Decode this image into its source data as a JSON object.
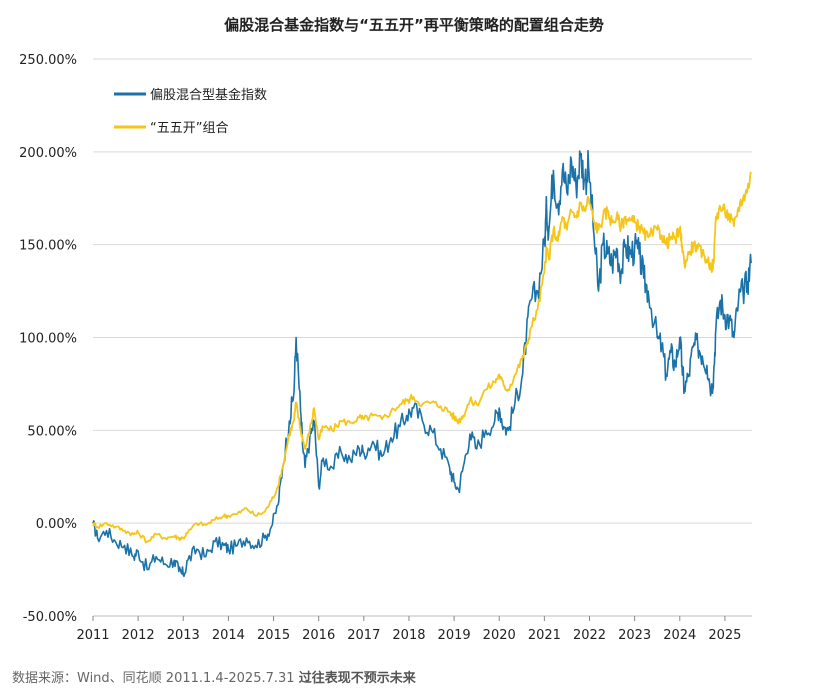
{
  "chart_data": {
    "type": "line",
    "title": "偏股混合基金指数与“五五开”再平衡策略的配置组合走势",
    "xlabel": "",
    "ylabel": "",
    "xlim": [
      2011.0,
      2025.6
    ],
    "ylim": [
      -50,
      250
    ],
    "yticks": [
      -50,
      0,
      50,
      100,
      150,
      200,
      250
    ],
    "ytick_labels": [
      "-50.00%",
      "0.00%",
      "50.00%",
      "100.00%",
      "150.00%",
      "200.00%",
      "250.00%"
    ],
    "xticks": [
      2011,
      2012,
      2013,
      2014,
      2015,
      2016,
      2017,
      2018,
      2019,
      2020,
      2021,
      2022,
      2023,
      2024,
      2025
    ],
    "xtick_labels": [
      "2011",
      "2012",
      "2013",
      "2014",
      "2015",
      "2016",
      "2017",
      "2018",
      "2019",
      "2020",
      "2021",
      "2022",
      "2023",
      "2024",
      "2025"
    ],
    "grid": true,
    "legend_position": "top-left",
    "series": [
      {
        "name": "偏股混合型基金指数",
        "color": "#1a72a8",
        "x": [
          2011.0,
          2011.1,
          2011.3,
          2011.5,
          2011.7,
          2011.9,
          2012.0,
          2012.2,
          2012.4,
          2012.6,
          2012.8,
          2012.9,
          2013.0,
          2013.1,
          2013.3,
          2013.5,
          2013.7,
          2013.9,
          2014.0,
          2014.2,
          2014.4,
          2014.6,
          2014.8,
          2014.95,
          2015.1,
          2015.2,
          2015.35,
          2015.45,
          2015.5,
          2015.6,
          2015.65,
          2015.7,
          2015.8,
          2015.9,
          2016.0,
          2016.1,
          2016.3,
          2016.5,
          2016.7,
          2016.9,
          2017.0,
          2017.2,
          2017.4,
          2017.6,
          2017.8,
          2017.95,
          2018.1,
          2018.3,
          2018.5,
          2018.7,
          2018.9,
          2019.0,
          2019.1,
          2019.2,
          2019.35,
          2019.5,
          2019.7,
          2019.9,
          2020.0,
          2020.1,
          2020.2,
          2020.35,
          2020.5,
          2020.6,
          2020.7,
          2020.85,
          2021.0,
          2021.05,
          2021.1,
          2021.2,
          2021.3,
          2021.4,
          2021.5,
          2021.6,
          2021.7,
          2021.8,
          2021.9,
          2021.98,
          2022.1,
          2022.2,
          2022.3,
          2022.4,
          2022.5,
          2022.6,
          2022.7,
          2022.8,
          2022.9,
          2023.0,
          2023.1,
          2023.2,
          2023.3,
          2023.5,
          2023.6,
          2023.7,
          2023.8,
          2023.9,
          2024.0,
          2024.05,
          2024.1,
          2024.2,
          2024.3,
          2024.4,
          2024.5,
          2024.6,
          2024.7,
          2024.75,
          2024.8,
          2024.9,
          2025.0,
          2025.1,
          2025.2,
          2025.3,
          2025.4,
          2025.5,
          2025.58
        ],
        "y": [
          0,
          -8,
          -4,
          -10,
          -12,
          -18,
          -15,
          -25,
          -18,
          -22,
          -20,
          -26,
          -28,
          -20,
          -14,
          -18,
          -10,
          -12,
          -14,
          -12,
          -8,
          -12,
          -8,
          -2,
          10,
          30,
          55,
          70,
          100,
          60,
          40,
          30,
          45,
          55,
          20,
          35,
          30,
          38,
          34,
          40,
          38,
          44,
          36,
          46,
          52,
          58,
          62,
          55,
          50,
          40,
          30,
          22,
          18,
          30,
          48,
          40,
          50,
          55,
          62,
          52,
          50,
          65,
          78,
          100,
          120,
          125,
          150,
          170,
          158,
          190,
          172,
          190,
          178,
          195,
          182,
          198,
          185,
          192,
          155,
          125,
          150,
          145,
          140,
          148,
          135,
          150,
          145,
          148,
          145,
          132,
          125,
          100,
          95,
          80,
          92,
          85,
          100,
          85,
          72,
          80,
          95,
          96,
          90,
          85,
          72,
          80,
          105,
          120,
          112,
          110,
          100,
          120,
          125,
          130,
          140
        ]
      },
      {
        "name": "“五五开”组合",
        "color": "#f5c518",
        "x": [
          2011.0,
          2011.1,
          2011.3,
          2011.5,
          2011.7,
          2011.9,
          2012.0,
          2012.2,
          2012.4,
          2012.6,
          2012.8,
          2012.9,
          2013.0,
          2013.1,
          2013.3,
          2013.5,
          2013.7,
          2013.9,
          2014.0,
          2014.2,
          2014.4,
          2014.6,
          2014.8,
          2014.95,
          2015.1,
          2015.2,
          2015.35,
          2015.45,
          2015.5,
          2015.6,
          2015.65,
          2015.7,
          2015.8,
          2015.9,
          2016.0,
          2016.1,
          2016.3,
          2016.5,
          2016.7,
          2016.9,
          2017.0,
          2017.2,
          2017.4,
          2017.6,
          2017.8,
          2017.95,
          2018.1,
          2018.3,
          2018.5,
          2018.7,
          2018.9,
          2019.0,
          2019.1,
          2019.2,
          2019.35,
          2019.5,
          2019.7,
          2019.9,
          2020.0,
          2020.1,
          2020.2,
          2020.35,
          2020.5,
          2020.6,
          2020.7,
          2020.85,
          2021.0,
          2021.05,
          2021.1,
          2021.2,
          2021.3,
          2021.4,
          2021.5,
          2021.6,
          2021.7,
          2021.8,
          2021.9,
          2021.98,
          2022.1,
          2022.2,
          2022.3,
          2022.4,
          2022.5,
          2022.6,
          2022.7,
          2022.8,
          2022.9,
          2023.0,
          2023.1,
          2023.2,
          2023.3,
          2023.5,
          2023.6,
          2023.7,
          2023.8,
          2023.9,
          2024.0,
          2024.05,
          2024.1,
          2024.2,
          2024.3,
          2024.4,
          2024.5,
          2024.6,
          2024.7,
          2024.75,
          2024.8,
          2024.9,
          2025.0,
          2025.1,
          2025.2,
          2025.3,
          2025.4,
          2025.5,
          2025.58
        ],
        "y": [
          0,
          -2,
          0,
          -2,
          -4,
          -6,
          -5,
          -10,
          -6,
          -8,
          -7,
          -8,
          -8,
          -5,
          0,
          -1,
          2,
          4,
          4,
          5,
          8,
          4,
          6,
          12,
          20,
          30,
          48,
          55,
          65,
          50,
          45,
          40,
          50,
          62,
          45,
          52,
          50,
          55,
          54,
          57,
          56,
          58,
          56,
          60,
          64,
          66,
          68,
          64,
          65,
          63,
          60,
          57,
          55,
          58,
          66,
          64,
          72,
          76,
          80,
          74,
          72,
          80,
          88,
          95,
          105,
          115,
          135,
          148,
          142,
          158,
          152,
          165,
          158,
          168,
          165,
          172,
          168,
          175,
          162,
          158,
          165,
          168,
          162,
          165,
          160,
          165,
          163,
          162,
          160,
          156,
          154,
          158,
          155,
          150,
          154,
          153,
          158,
          150,
          140,
          145,
          150,
          148,
          145,
          142,
          138,
          140,
          165,
          170,
          168,
          165,
          160,
          170,
          175,
          180,
          188
        ]
      }
    ],
    "source_note": "数据来源：Wind、同花顺 2011.1.4-2025.7.31",
    "disclaimer": "过往表现不预示未来"
  }
}
